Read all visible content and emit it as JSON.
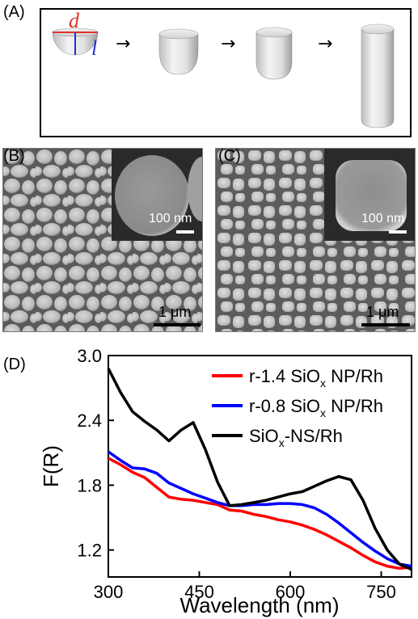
{
  "panels": {
    "a_label": "(A)",
    "b_label": "(B)",
    "c_label": "(C)",
    "d_label": "(D)"
  },
  "schematic": {
    "dim_d": "d",
    "dim_l": "l",
    "arrow_glyph": "→"
  },
  "sem_b": {
    "scale_label": "1 μm",
    "inset_scale_label": "100 nm"
  },
  "sem_c": {
    "scale_label": "1 μm",
    "inset_scale_label": "100 nm"
  },
  "chart_data": {
    "type": "line",
    "xlabel": "Wavelength (nm)",
    "ylabel": "F(R)",
    "xlim": [
      300,
      800
    ],
    "ylim": [
      0.95,
      3.0
    ],
    "xticks": [
      300,
      450,
      600,
      750
    ],
    "yticks": [
      1.2,
      1.8,
      2.4,
      3.0
    ],
    "ytick_labels": [
      "1.2",
      "1.8",
      "2.4",
      "3.0"
    ],
    "legend_position": "top-right",
    "series": [
      {
        "name": "r-1.4 SiOx NP/Rh",
        "legend_main": "r-1.4 SiO",
        "legend_sub": "x",
        "legend_tail": " NP/Rh",
        "color": "#ff0000",
        "x": [
          300,
          320,
          340,
          360,
          380,
          400,
          420,
          440,
          460,
          480,
          500,
          520,
          540,
          560,
          580,
          600,
          620,
          640,
          660,
          680,
          700,
          720,
          740,
          760,
          780,
          800
        ],
        "y": [
          2.05,
          1.99,
          1.92,
          1.87,
          1.78,
          1.69,
          1.67,
          1.66,
          1.64,
          1.62,
          1.57,
          1.56,
          1.53,
          1.51,
          1.48,
          1.46,
          1.43,
          1.39,
          1.34,
          1.28,
          1.22,
          1.15,
          1.09,
          1.05,
          1.03,
          1.04
        ]
      },
      {
        "name": "r-0.8 SiOx NP/Rh",
        "legend_main": "r-0.8 SiO",
        "legend_sub": "x",
        "legend_tail": " NP/Rh",
        "color": "#0000ff",
        "x": [
          300,
          320,
          340,
          360,
          380,
          400,
          420,
          440,
          460,
          480,
          500,
          520,
          540,
          560,
          580,
          600,
          620,
          640,
          660,
          680,
          700,
          720,
          740,
          760,
          780,
          800
        ],
        "y": [
          2.11,
          2.03,
          1.96,
          1.95,
          1.91,
          1.82,
          1.77,
          1.72,
          1.68,
          1.64,
          1.61,
          1.61,
          1.62,
          1.62,
          1.63,
          1.63,
          1.62,
          1.59,
          1.53,
          1.45,
          1.36,
          1.27,
          1.19,
          1.12,
          1.07,
          1.05
        ]
      },
      {
        "name": "SiOx-NS/Rh",
        "legend_main": "SiO",
        "legend_sub": "x",
        "legend_tail": "-NS/Rh",
        "color": "#000000",
        "x": [
          300,
          320,
          340,
          360,
          380,
          400,
          420,
          440,
          460,
          480,
          500,
          520,
          540,
          560,
          580,
          600,
          620,
          640,
          660,
          680,
          700,
          720,
          740,
          760,
          780,
          800
        ],
        "y": [
          2.88,
          2.66,
          2.48,
          2.39,
          2.31,
          2.21,
          2.31,
          2.38,
          2.13,
          1.83,
          1.61,
          1.62,
          1.64,
          1.66,
          1.69,
          1.72,
          1.74,
          1.79,
          1.84,
          1.88,
          1.85,
          1.66,
          1.4,
          1.2,
          1.07,
          1.02
        ]
      }
    ]
  }
}
